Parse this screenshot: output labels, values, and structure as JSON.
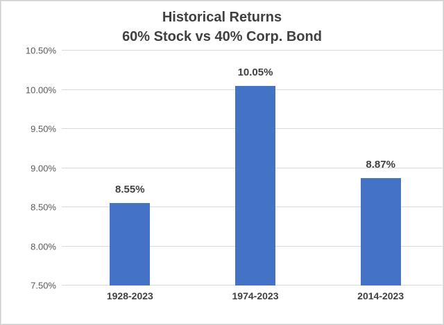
{
  "chart": {
    "title_line1": "Historical Returns",
    "title_line2": "60% Stock vs 40% Corp. Bond"
  },
  "chart_data": {
    "type": "bar",
    "title": "Historical Returns 60% Stock vs 40% Corp. Bond",
    "categories": [
      "1928-2023",
      "1974-2023",
      "2014-2023"
    ],
    "values": [
      8.55,
      10.05,
      8.87
    ],
    "data_labels": [
      "8.55%",
      "10.05%",
      "8.87%"
    ],
    "xlabel": "",
    "ylabel": "",
    "ylim": [
      7.5,
      10.5
    ],
    "yticks": [
      7.5,
      8.0,
      8.5,
      9.0,
      9.5,
      10.0,
      10.5
    ],
    "ytick_labels": [
      "7.50%",
      "8.00%",
      "8.50%",
      "9.00%",
      "9.50%",
      "10.00%",
      "10.50%"
    ],
    "grid": true,
    "legend": false,
    "bar_color": "#4472C4",
    "gridline_color": "#D9D9D9",
    "title_color": "#404040",
    "axis_tick_label_color": "#595959",
    "category_label_color": "#404040",
    "data_label_color": "#404040",
    "background_color": "#FFFFFF"
  }
}
